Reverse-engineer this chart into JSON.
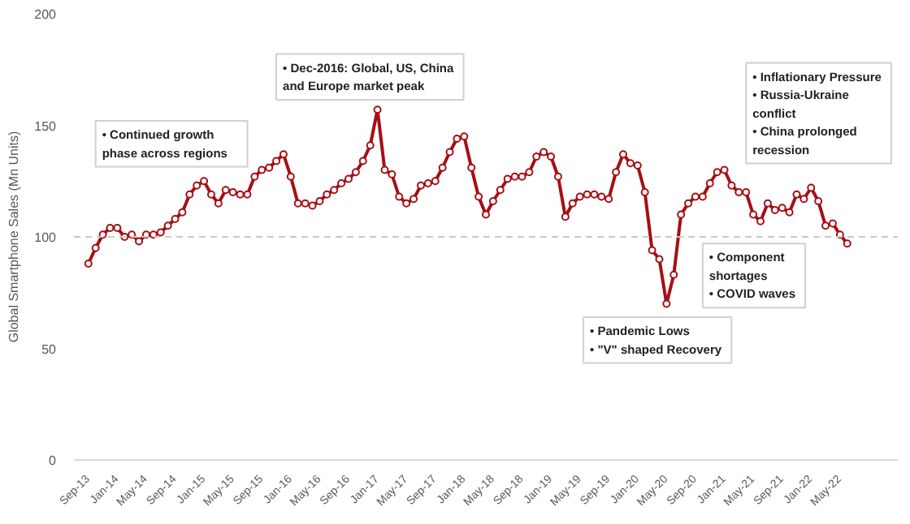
{
  "chart_data": {
    "type": "line",
    "ylabel": "Global Smartphone Sales (Mn Units)",
    "categories": [
      "Sep-13",
      null,
      null,
      null,
      "Jan-14",
      null,
      null,
      null,
      "May-14",
      null,
      null,
      null,
      "Sep-14",
      null,
      null,
      null,
      "Jan-15",
      null,
      null,
      null,
      "May-15",
      null,
      null,
      null,
      "Sep-15",
      null,
      null,
      null,
      "Jan-16",
      null,
      null,
      null,
      "May-16",
      null,
      null,
      null,
      "Sep-16",
      null,
      null,
      null,
      "Jan-17",
      null,
      null,
      null,
      "May-17",
      null,
      null,
      null,
      "Sep-17",
      null,
      null,
      null,
      "Jan-18",
      null,
      null,
      null,
      "May-18",
      null,
      null,
      null,
      "Sep-18",
      null,
      null,
      null,
      "Jan-19",
      null,
      null,
      null,
      "May-19",
      null,
      null,
      null,
      "Sep-19",
      null,
      null,
      null,
      "Jan-20",
      null,
      null,
      null,
      "May-20",
      null,
      null,
      null,
      "Sep-20",
      null,
      null,
      null,
      "Jan-21",
      null,
      null,
      null,
      "May-21",
      null,
      null,
      null,
      "Sep-21",
      null,
      null,
      null,
      "Jan-22",
      null,
      null,
      null,
      "May-22",
      null
    ],
    "series": [
      {
        "color": "#a50f15",
        "values": [
          88,
          95,
          101,
          104,
          104,
          100,
          101,
          98,
          101,
          101,
          102,
          105,
          108,
          111,
          119,
          123,
          125,
          119,
          115,
          121,
          120,
          119,
          119,
          127,
          130,
          131,
          134,
          137,
          127,
          115,
          115,
          114,
          116,
          119,
          121,
          124,
          126,
          129,
          134,
          141,
          157,
          130,
          128,
          118,
          115,
          117,
          123,
          124,
          125,
          131,
          138,
          144,
          145,
          131,
          118,
          110,
          116,
          121,
          126,
          127,
          127,
          129,
          136,
          138,
          136,
          127,
          109,
          115,
          118,
          119,
          119,
          118,
          117,
          129,
          137,
          133,
          132,
          120,
          94,
          90,
          70,
          83,
          110,
          115,
          118,
          118,
          124,
          129,
          130,
          123,
          120,
          120,
          110,
          107,
          115,
          112,
          113,
          111,
          119,
          117,
          122,
          116,
          105,
          106,
          101,
          97
        ]
      }
    ],
    "ylim": [
      0,
      200
    ],
    "yticks": [
      0,
      50,
      100,
      150,
      200
    ],
    "grid": false,
    "marker": "circle",
    "line_style": "solid",
    "ref_lines": [
      {
        "axis": "y",
        "value": 100,
        "color": "#c8c8c8",
        "line_style": "dashed"
      }
    ],
    "annotations": [
      "•  Continued growth\n    phase across regions",
      "•  Dec-2016: Global, US, China\n    and Europe market peak",
      "•  Inflationary Pressure\n•  Russia-Ukraine\n    conflict\n•  China prolonged\n    recession",
      "•  Component\n    shortages\n•  COVID waves",
      "•  Pandemic Lows\n•  \"V\" shaped Recovery"
    ]
  }
}
